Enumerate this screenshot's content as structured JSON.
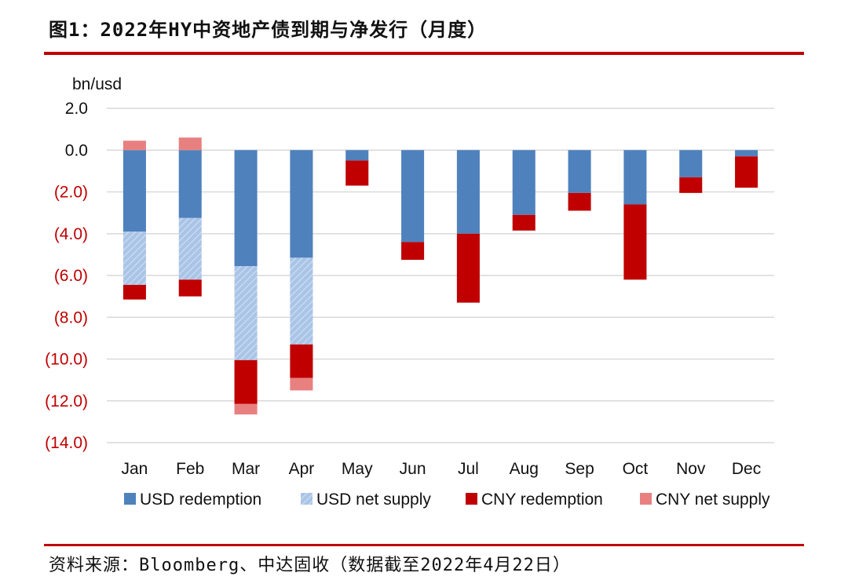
{
  "header": {
    "title": "图1：2022年HY中资地产债到期与净发行（月度）"
  },
  "footer": {
    "source": "资料来源：Bloomberg、中达固收（数据截至2022年4月22日）"
  },
  "chart_data": {
    "type": "bar",
    "stacked": true,
    "ylabel": "bn/usd",
    "ylim": [
      -14,
      2
    ],
    "yticks": [
      2,
      0,
      -2,
      -4,
      -6,
      -8,
      -10,
      -12,
      -14
    ],
    "ytick_labels": [
      "2.0",
      "0.0",
      "(2.0)",
      "(4.0)",
      "(6.0)",
      "(8.0)",
      "(10.0)",
      "(12.0)",
      "(14.0)"
    ],
    "grid": true,
    "legend_position": "bottom",
    "categories": [
      "Jan",
      "Feb",
      "Mar",
      "Apr",
      "May",
      "Jun",
      "Jul",
      "Aug",
      "Sep",
      "Oct",
      "Nov",
      "Dec"
    ],
    "series": [
      {
        "name": "USD redemption",
        "color": "#4f81bd",
        "pattern": "solid",
        "values": [
          -3.9,
          -3.25,
          -5.55,
          -5.15,
          -0.5,
          -4.4,
          -4.0,
          -3.1,
          -2.05,
          -2.6,
          -1.3,
          -0.3
        ]
      },
      {
        "name": "USD net supply",
        "color": "#a9c4e6",
        "pattern": "hatch",
        "values": [
          -2.55,
          -2.95,
          -4.5,
          -4.15,
          0,
          0,
          0,
          0,
          0,
          0,
          0,
          0
        ]
      },
      {
        "name": "CNY redemption",
        "color": "#c00000",
        "pattern": "solid",
        "values": [
          -0.7,
          -0.8,
          -2.1,
          -1.6,
          -1.2,
          -0.85,
          -3.3,
          -0.75,
          -0.85,
          -3.6,
          -0.75,
          -1.5
        ]
      },
      {
        "name": "CNY net supply",
        "color": "#e88080",
        "pattern": "solid",
        "values": [
          0.45,
          0.6,
          -0.5,
          -0.6,
          0,
          0,
          0,
          0,
          0,
          0,
          0,
          0
        ]
      }
    ],
    "colors": {
      "negative_tick": "#c00000",
      "positive_tick": "#111111",
      "grid": "#d9d9d9"
    }
  }
}
